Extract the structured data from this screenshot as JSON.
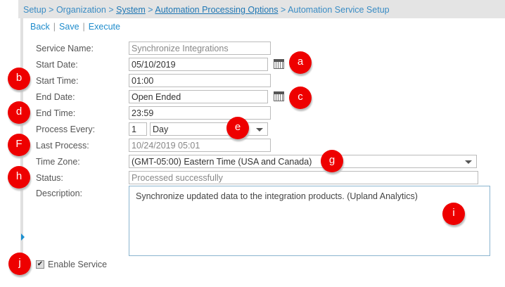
{
  "breadcrumb": [
    {
      "label": "Setup",
      "link": false
    },
    {
      "label": "Organization",
      "link": false
    },
    {
      "label": "System",
      "link": true
    },
    {
      "label": "Automation Processing Options",
      "link": true
    },
    {
      "label": "Automation Service Setup",
      "link": false
    }
  ],
  "breadcrumb_sep": ">",
  "actions": {
    "back": "Back",
    "save": "Save",
    "execute": "Execute",
    "sep": "|"
  },
  "form": {
    "service_name": {
      "label": "Service Name:",
      "value": "Synchronize Integrations"
    },
    "start_date": {
      "label": "Start Date:",
      "value": "05/10/2019"
    },
    "start_time": {
      "label": "Start Time:",
      "value": "01:00"
    },
    "end_date": {
      "label": "End Date:",
      "value": "Open Ended"
    },
    "end_time": {
      "label": "End Time:",
      "value": "23:59"
    },
    "process_every": {
      "label": "Process Every:",
      "count": "1",
      "unit": "Day"
    },
    "last_process": {
      "label": "Last Process:",
      "value": "10/24/2019 05:01"
    },
    "time_zone": {
      "label": "Time Zone:",
      "value": "(GMT-05:00) Eastern Time (USA and Canada)"
    },
    "status": {
      "label": "Status:",
      "value": "Processed successfully"
    },
    "description": {
      "label": "Description:",
      "value": "Synchronize updated data to the integration products. (Upland Analytics)"
    },
    "enable_service": {
      "label": "Enable Service",
      "checked": true
    }
  },
  "callouts": [
    "a",
    "b",
    "c",
    "d",
    "e",
    "F",
    "g",
    "h",
    "i",
    "j"
  ],
  "colors": {
    "link": "#1f8ccc",
    "callout": "#ee0000",
    "header": "#e4e4e4"
  }
}
